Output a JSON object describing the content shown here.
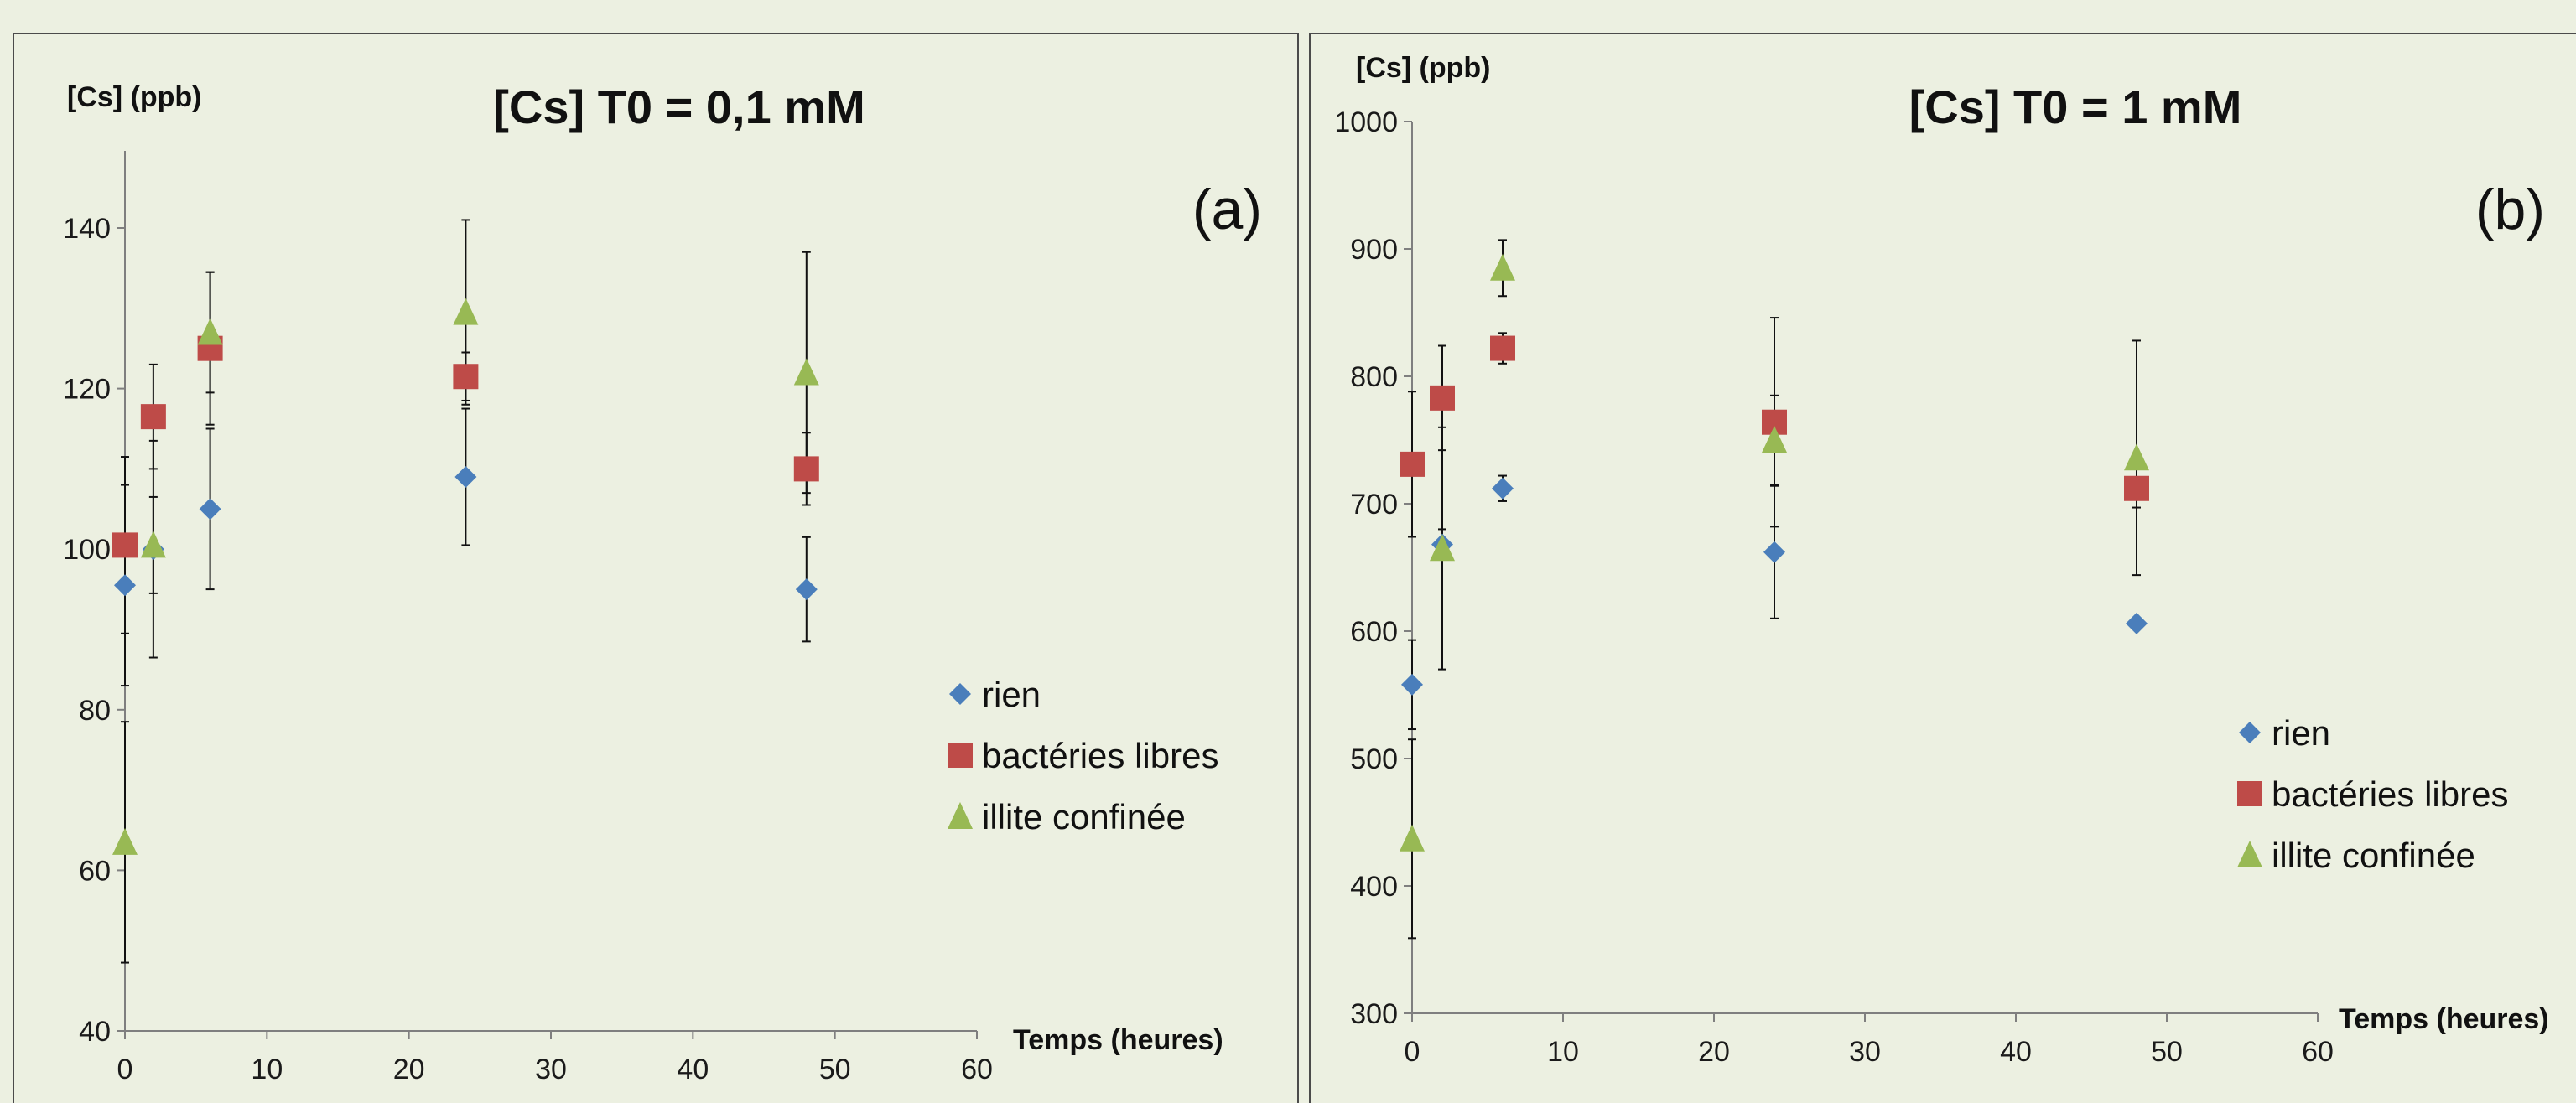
{
  "chart_data": [
    {
      "type": "scatter",
      "title": "[Cs] T0 = 0,1 mM",
      "panel_label": "(a)",
      "xlabel": "Temps (heures)",
      "ylabel": "[Cs] (ppb)",
      "xlim": [
        0,
        60
      ],
      "ylim": [
        40,
        150
      ],
      "x_ticks": [
        "0",
        "10",
        "20",
        "30",
        "40",
        "50",
        "60"
      ],
      "y_ticks": [
        "40",
        "60",
        "80",
        "100",
        "120",
        "140"
      ],
      "grid": false,
      "legend_position": "right",
      "series": [
        {
          "name": "rien",
          "marker": "diamond",
          "color": "#4a7ebb",
          "points": [
            {
              "x": 0,
              "y": 95.5,
              "err": 12.5
            },
            {
              "x": 2,
              "y": 100,
              "err": 13.5
            },
            {
              "x": 6,
              "y": 105,
              "err": 10
            },
            {
              "x": 24,
              "y": 109,
              "err": 8.5
            },
            {
              "x": 48,
              "y": 95,
              "err": 6.5
            }
          ]
        },
        {
          "name": "bactéries libres",
          "marker": "square",
          "color": "#be4b48",
          "points": [
            {
              "x": 0,
              "y": 100.5,
              "err": 11
            },
            {
              "x": 2,
              "y": 116.5,
              "err": 6.5
            },
            {
              "x": 6,
              "y": 125,
              "err": 9.5
            },
            {
              "x": 24,
              "y": 121.5,
              "err": 3
            },
            {
              "x": 48,
              "y": 110,
              "err": 4.5
            }
          ]
        },
        {
          "name": "illite confinée",
          "marker": "triangle",
          "color": "#98b954",
          "points": [
            {
              "x": 0,
              "y": 63.5,
              "err": 15
            },
            {
              "x": 2,
              "y": 100.5,
              "err": 6
            },
            {
              "x": 6,
              "y": 127,
              "err": 7.5
            },
            {
              "x": 24,
              "y": 129.5,
              "err": 11.5
            },
            {
              "x": 48,
              "y": 122,
              "err": 15
            }
          ]
        }
      ]
    },
    {
      "type": "scatter",
      "title": "[Cs] T0 = 1 mM",
      "panel_label": "(b)",
      "xlabel": "Temps (heures)",
      "ylabel": "[Cs] (ppb)",
      "xlim": [
        0,
        60
      ],
      "ylim": [
        300,
        1000
      ],
      "x_ticks": [
        "0",
        "10",
        "20",
        "30",
        "40",
        "50",
        "60"
      ],
      "y_ticks": [
        "300",
        "400",
        "500",
        "600",
        "700",
        "800",
        "900",
        "1000"
      ],
      "grid": false,
      "legend_position": "right",
      "series": [
        {
          "name": "rien",
          "marker": "diamond",
          "color": "#4a7ebb",
          "points": [
            {
              "x": 0,
              "y": 558,
              "err": 35
            },
            {
              "x": 2,
              "y": 668,
              "err": 12
            },
            {
              "x": 6,
              "y": 712,
              "err": 10
            },
            {
              "x": 24,
              "y": 662,
              "err": 52
            },
            {
              "x": 48,
              "y": 606,
              "err": 0
            }
          ]
        },
        {
          "name": "bactéries libres",
          "marker": "square",
          "color": "#be4b48",
          "points": [
            {
              "x": 0,
              "y": 731,
              "err": 57
            },
            {
              "x": 2,
              "y": 783,
              "err": 41
            },
            {
              "x": 6,
              "y": 822,
              "err": 12
            },
            {
              "x": 24,
              "y": 764,
              "err": 82
            },
            {
              "x": 48,
              "y": 712,
              "err": 15
            }
          ]
        },
        {
          "name": "illite confinée",
          "marker": "triangle",
          "color": "#98b954",
          "points": [
            {
              "x": 0,
              "y": 437,
              "err": 78
            },
            {
              "x": 2,
              "y": 665,
              "err": 95
            },
            {
              "x": 6,
              "y": 885,
              "err": 22
            },
            {
              "x": 24,
              "y": 750,
              "err": 35
            },
            {
              "x": 48,
              "y": 736,
              "err": 92
            }
          ]
        }
      ]
    }
  ]
}
